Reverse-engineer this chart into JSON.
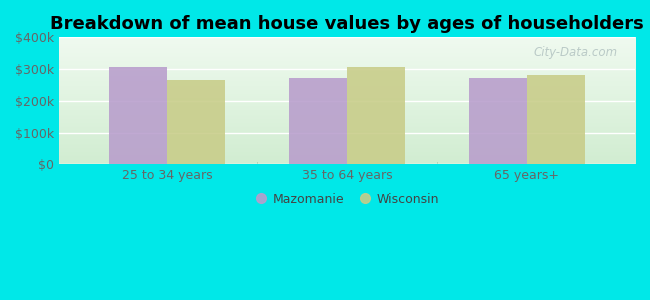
{
  "title": "Breakdown of mean house values by ages of householders",
  "categories": [
    "25 to 34 years",
    "35 to 64 years",
    "65 years+"
  ],
  "mazomanie": [
    305000,
    272000,
    272000
  ],
  "wisconsin": [
    265000,
    305000,
    280000
  ],
  "bar_color_mazomanie": "#b89dcc",
  "bar_color_wisconsin": "#c8cc88",
  "background_color": "#00e8e8",
  "plot_bg_top": "#e8f5e8",
  "plot_bg_bottom": "#d0ecd0",
  "ylim": [
    0,
    400000
  ],
  "yticks": [
    0,
    100000,
    200000,
    300000,
    400000
  ],
  "ytick_labels": [
    "$0",
    "$100k",
    "$200k",
    "$300k",
    "$400k"
  ],
  "legend_mazomanie": "Mazomanie",
  "legend_wisconsin": "Wisconsin",
  "title_fontsize": 13,
  "tick_fontsize": 9,
  "legend_fontsize": 9,
  "bar_width": 0.32,
  "watermark": "City-Data.com"
}
